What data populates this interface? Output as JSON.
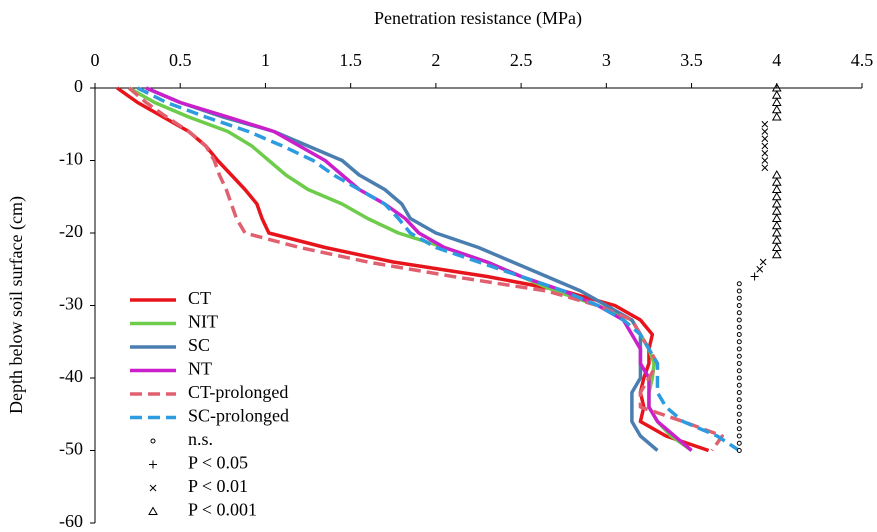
{
  "chart_data": {
    "type": "line",
    "x_label": "Penetration resistance (MPa)",
    "y_label": "Depth below soil surface (cm)",
    "xlim": [
      0,
      4.5
    ],
    "xticks": [
      0,
      0.5,
      1,
      1.5,
      2,
      2.5,
      3,
      3.5,
      4,
      4.5
    ],
    "ylim": [
      -60,
      0
    ],
    "yticks": [
      0,
      -10,
      -20,
      -30,
      -40,
      -50,
      -60
    ],
    "y": [
      0,
      -2,
      -4,
      -6,
      -8,
      -10,
      -12,
      -14,
      -16,
      -18,
      -20,
      -22,
      -24,
      -26,
      -28,
      -30,
      -32,
      -34,
      -36,
      -38,
      -40,
      -42,
      -44,
      -46,
      -48,
      -50
    ],
    "series": [
      {
        "name": "CT",
        "color": "#e8141c",
        "dash": "solid",
        "x": [
          0.13,
          0.25,
          0.4,
          0.55,
          0.65,
          0.72,
          0.8,
          0.88,
          0.95,
          0.98,
          1.02,
          1.35,
          1.75,
          2.3,
          2.75,
          3.05,
          3.2,
          3.27,
          3.25,
          3.25,
          3.22,
          3.2,
          3.22,
          3.2,
          3.35,
          3.6
        ]
      },
      {
        "name": "NIT",
        "color": "#6dcc4a",
        "dash": "solid",
        "x": [
          0.2,
          0.35,
          0.55,
          0.78,
          0.92,
          1.02,
          1.12,
          1.25,
          1.45,
          1.6,
          1.78,
          2.05,
          2.3,
          2.5,
          2.7,
          2.95,
          3.15,
          3.2,
          3.25,
          3.28,
          3.27,
          3.25,
          3.25,
          3.3,
          3.38,
          3.5
        ]
      },
      {
        "name": "SC",
        "color": "#4a7eb0",
        "dash": "solid",
        "x": [
          0.3,
          0.5,
          0.75,
          1.05,
          1.25,
          1.45,
          1.55,
          1.7,
          1.8,
          1.85,
          2.0,
          2.25,
          2.45,
          2.65,
          2.85,
          3.0,
          3.15,
          3.2,
          3.2,
          3.2,
          3.2,
          3.15,
          3.15,
          3.15,
          3.2,
          3.3
        ]
      },
      {
        "name": "NT",
        "color": "#cc1fcc",
        "dash": "solid",
        "x": [
          0.3,
          0.5,
          0.78,
          1.05,
          1.2,
          1.35,
          1.45,
          1.55,
          1.7,
          1.82,
          1.9,
          2.05,
          2.3,
          2.5,
          2.75,
          2.95,
          3.1,
          3.15,
          3.2,
          3.2,
          3.25,
          3.25,
          3.25,
          3.3,
          3.4,
          3.5
        ]
      },
      {
        "name": "CT-prolonged",
        "color": "#e06070",
        "dash": "dashed",
        "x": [
          0.2,
          0.3,
          0.42,
          0.55,
          0.65,
          0.7,
          0.73,
          0.77,
          0.8,
          0.83,
          0.88,
          1.2,
          1.6,
          2.1,
          2.65,
          2.95,
          3.15,
          3.2,
          3.25,
          3.3,
          3.25,
          3.2,
          3.2,
          3.45,
          3.68,
          3.62
        ]
      },
      {
        "name": "SC-prolonged",
        "color": "#2c9be0",
        "dash": "dashed",
        "x": [
          0.25,
          0.42,
          0.65,
          0.9,
          1.1,
          1.28,
          1.4,
          1.55,
          1.7,
          1.78,
          1.85,
          2.0,
          2.25,
          2.5,
          2.75,
          2.95,
          3.1,
          3.2,
          3.25,
          3.3,
          3.3,
          3.3,
          3.35,
          3.45,
          3.65,
          3.78
        ]
      }
    ],
    "markers": [
      {
        "name": "n.s.",
        "symbol": "dot",
        "x": [
          3.78,
          3.78,
          3.78,
          3.78,
          3.78,
          3.78,
          3.78,
          3.78,
          3.78,
          3.78,
          3.78,
          3.78,
          3.78,
          3.78,
          3.78,
          3.78,
          3.78,
          3.78,
          3.78,
          3.78,
          3.78,
          3.78,
          3.78,
          3.78
        ],
        "y": [
          -27,
          -28,
          -29,
          -30,
          -31,
          -32,
          -33,
          -34,
          -35,
          -36,
          -37,
          -38,
          -39,
          -40,
          -41,
          -42,
          -43,
          -44,
          -45,
          -46,
          -47,
          -48,
          -49,
          -50
        ]
      },
      {
        "name": "P < 0.05",
        "symbol": "plus",
        "x": [
          3.87
        ],
        "y": [
          -26
        ]
      },
      {
        "name": "P < 0.01",
        "symbol": "cross",
        "x": [
          3.93,
          3.93,
          3.93,
          3.93,
          3.93,
          3.93,
          3.93,
          3.92,
          3.9
        ],
        "y": [
          -5,
          -6,
          -7,
          -8,
          -9,
          -10,
          -11,
          -24,
          -25
        ]
      },
      {
        "name": "P < 0.001",
        "symbol": "triangle",
        "x": [
          4,
          4,
          4,
          4,
          4,
          4,
          4,
          4,
          4,
          4,
          4,
          4,
          4,
          4,
          4,
          4,
          4
        ],
        "y": [
          0,
          -1,
          -2,
          -3,
          -4,
          -12,
          -13,
          -14,
          -15,
          -16,
          -17,
          -18,
          -19,
          -20,
          -21,
          -22,
          -23
        ]
      }
    ]
  }
}
